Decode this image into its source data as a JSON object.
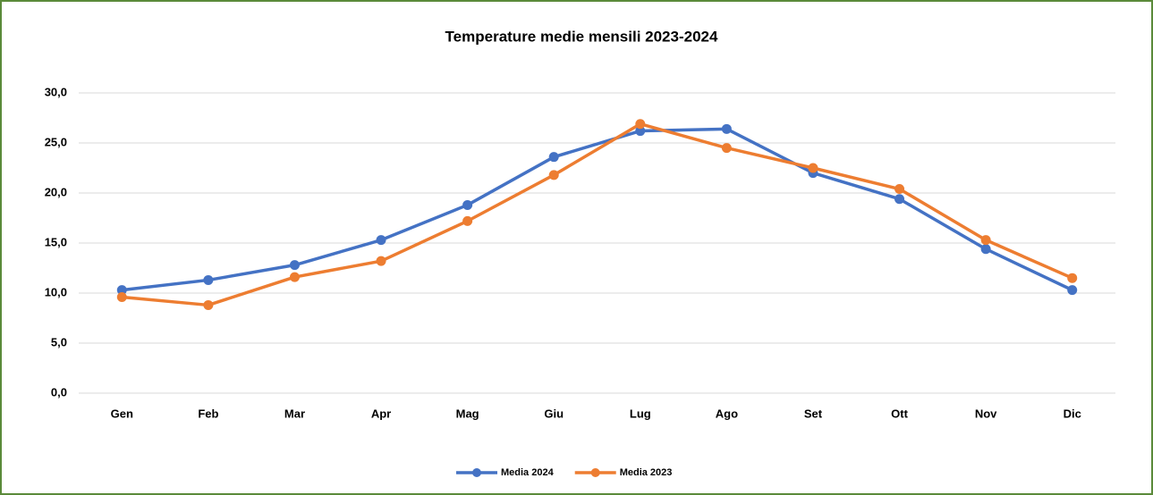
{
  "chart_data": {
    "type": "line",
    "title": "Temperature medie mensili 2023-2024",
    "categories": [
      "Gen",
      "Feb",
      "Mar",
      "Apr",
      "Mag",
      "Giu",
      "Lug",
      "Ago",
      "Set",
      "Ott",
      "Nov",
      "Dic"
    ],
    "series": [
      {
        "name": "Media 2024",
        "color": "#4472c4",
        "values": [
          10.3,
          11.3,
          12.8,
          15.3,
          18.8,
          23.6,
          26.2,
          26.4,
          22.0,
          19.4,
          14.4,
          10.3
        ]
      },
      {
        "name": "Media 2023",
        "color": "#ed7d31",
        "values": [
          9.6,
          8.8,
          11.6,
          13.2,
          17.2,
          21.8,
          26.9,
          24.5,
          22.5,
          20.4,
          15.3,
          11.5
        ]
      }
    ],
    "ylim": [
      0,
      30
    ],
    "yticks": [
      {
        "value": 0,
        "label": "0,0"
      },
      {
        "value": 5,
        "label": "5,0"
      },
      {
        "value": 10,
        "label": "10,0"
      },
      {
        "value": 15,
        "label": "15,0"
      },
      {
        "value": 20,
        "label": "20,0"
      },
      {
        "value": 25,
        "label": "25,0"
      },
      {
        "value": 30,
        "label": "30,0"
      }
    ],
    "grid": true,
    "legend": "bottom"
  }
}
